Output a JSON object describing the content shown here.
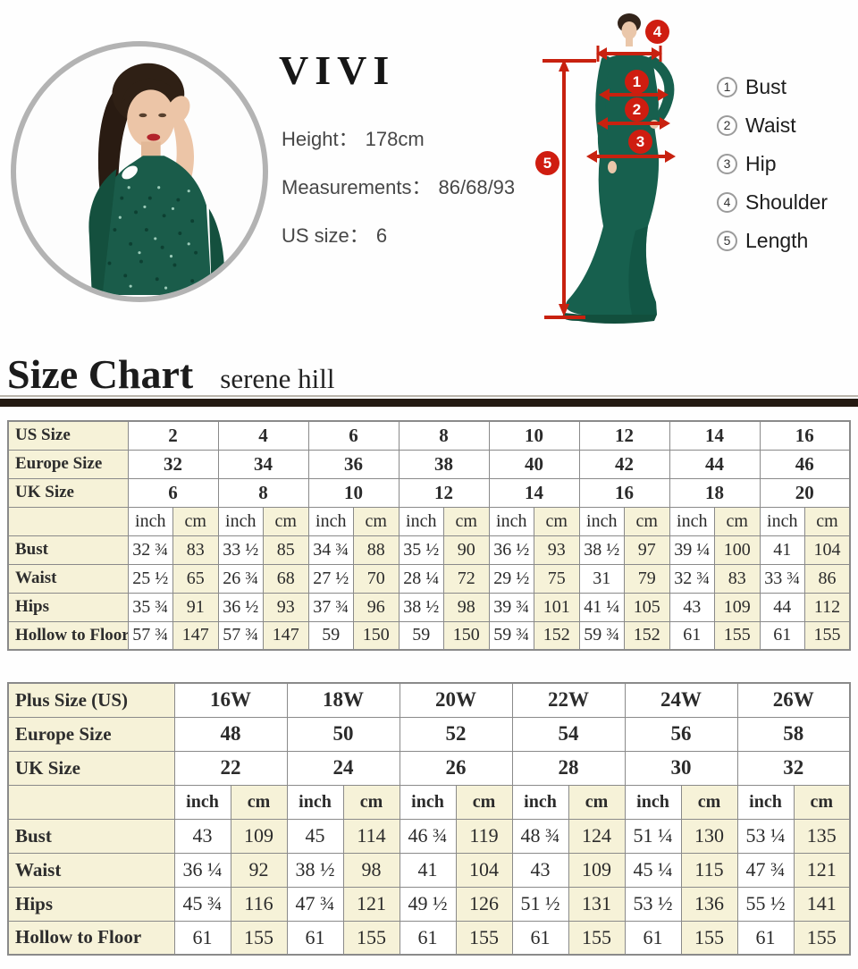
{
  "profile": {
    "name": "VIVI",
    "lines": [
      {
        "label": "Height：",
        "value": "178cm"
      },
      {
        "label": "Measurements：",
        "value": "86/68/93"
      },
      {
        "label": "US size：",
        "value": "6"
      }
    ]
  },
  "diagram": {
    "markers": [
      "1",
      "2",
      "3",
      "4",
      "5"
    ],
    "legend": [
      {
        "num": "1",
        "label": "Bust"
      },
      {
        "num": "2",
        "label": "Waist"
      },
      {
        "num": "3",
        "label": "Hip"
      },
      {
        "num": "4",
        "label": "Shoulder"
      },
      {
        "num": "5",
        "label": "Length"
      }
    ],
    "accent_color": "#cf1d10"
  },
  "heading": {
    "title": "Size Chart",
    "subtitle": "serene hill"
  },
  "colors": {
    "cream": "#f6f2d8",
    "grid": "#8a8a8a",
    "divider": "#241a12",
    "red": "#cf1d10",
    "dress_green": "#17604e"
  },
  "tables": [
    {
      "name": "standard-sizes",
      "units": [
        "inch",
        "cm"
      ],
      "size_rows": [
        {
          "label": "US Size",
          "values": [
            "2",
            "4",
            "6",
            "8",
            "10",
            "12",
            "14",
            "16"
          ]
        },
        {
          "label": "Europe Size",
          "values": [
            "32",
            "34",
            "36",
            "38",
            "40",
            "42",
            "44",
            "46"
          ]
        },
        {
          "label": "UK Size",
          "values": [
            "6",
            "8",
            "10",
            "12",
            "14",
            "16",
            "18",
            "20"
          ]
        }
      ],
      "measure_rows": [
        {
          "label": "Bust",
          "pairs": [
            [
              "32 ¾",
              "83"
            ],
            [
              "33 ½",
              "85"
            ],
            [
              "34 ¾",
              "88"
            ],
            [
              "35 ½",
              "90"
            ],
            [
              "36 ½",
              "93"
            ],
            [
              "38 ½",
              "97"
            ],
            [
              "39 ¼",
              "100"
            ],
            [
              "41",
              "104"
            ]
          ]
        },
        {
          "label": "Waist",
          "pairs": [
            [
              "25 ½",
              "65"
            ],
            [
              "26 ¾",
              "68"
            ],
            [
              "27 ½",
              "70"
            ],
            [
              "28 ¼",
              "72"
            ],
            [
              "29 ½",
              "75"
            ],
            [
              "31",
              "79"
            ],
            [
              "32 ¾",
              "83"
            ],
            [
              "33 ¾",
              "86"
            ]
          ]
        },
        {
          "label": "Hips",
          "pairs": [
            [
              "35 ¾",
              "91"
            ],
            [
              "36 ½",
              "93"
            ],
            [
              "37 ¾",
              "96"
            ],
            [
              "38 ½",
              "98"
            ],
            [
              "39 ¾",
              "101"
            ],
            [
              "41 ¼",
              "105"
            ],
            [
              "43",
              "109"
            ],
            [
              "44",
              "112"
            ]
          ]
        },
        {
          "label": "Hollow to Floor",
          "pairs": [
            [
              "57 ¾",
              "147"
            ],
            [
              "57 ¾",
              "147"
            ],
            [
              "59",
              "150"
            ],
            [
              "59",
              "150"
            ],
            [
              "59 ¾",
              "152"
            ],
            [
              "59 ¾",
              "152"
            ],
            [
              "61",
              "155"
            ],
            [
              "61",
              "155"
            ]
          ]
        }
      ]
    },
    {
      "name": "plus-sizes",
      "units": [
        "inch",
        "cm"
      ],
      "size_rows": [
        {
          "label": "Plus Size (US)",
          "values": [
            "16W",
            "18W",
            "20W",
            "22W",
            "24W",
            "26W"
          ]
        },
        {
          "label": "Europe Size",
          "values": [
            "48",
            "50",
            "52",
            "54",
            "56",
            "58"
          ]
        },
        {
          "label": "UK Size",
          "values": [
            "22",
            "24",
            "26",
            "28",
            "30",
            "32"
          ]
        }
      ],
      "measure_rows": [
        {
          "label": "Bust",
          "pairs": [
            [
              "43",
              "109"
            ],
            [
              "45",
              "114"
            ],
            [
              "46 ¾",
              "119"
            ],
            [
              "48 ¾",
              "124"
            ],
            [
              "51 ¼",
              "130"
            ],
            [
              "53 ¼",
              "135"
            ]
          ]
        },
        {
          "label": "Waist",
          "pairs": [
            [
              "36 ¼",
              "92"
            ],
            [
              "38 ½",
              "98"
            ],
            [
              "41",
              "104"
            ],
            [
              "43",
              "109"
            ],
            [
              "45 ¼",
              "115"
            ],
            [
              "47 ¾",
              "121"
            ]
          ]
        },
        {
          "label": "Hips",
          "pairs": [
            [
              "45 ¾",
              "116"
            ],
            [
              "47 ¾",
              "121"
            ],
            [
              "49 ½",
              "126"
            ],
            [
              "51 ½",
              "131"
            ],
            [
              "53 ½",
              "136"
            ],
            [
              "55 ½",
              "141"
            ]
          ]
        },
        {
          "label": "Hollow to Floor",
          "pairs": [
            [
              "61",
              "155"
            ],
            [
              "61",
              "155"
            ],
            [
              "61",
              "155"
            ],
            [
              "61",
              "155"
            ],
            [
              "61",
              "155"
            ],
            [
              "61",
              "155"
            ]
          ]
        }
      ]
    }
  ]
}
